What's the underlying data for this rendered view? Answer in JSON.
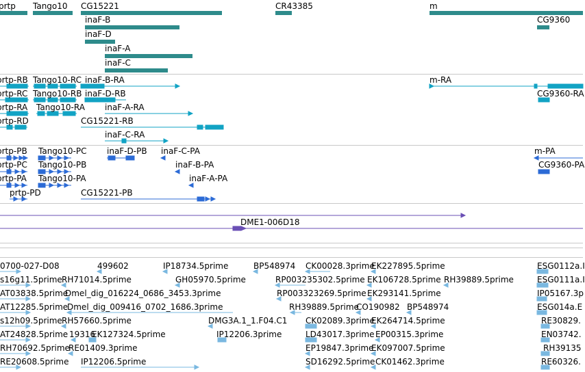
{
  "colors": {
    "gene": "#2e8b8b",
    "transcript": "#12a3c4",
    "protein": "#2c6bd6",
    "clone": "#6a4fb5",
    "est": "#7ab8e0",
    "divider": "#c8c8c8"
  },
  "tracks": {
    "genes": {
      "labels": [
        "prtp",
        "Tango10",
        "CG15221",
        "CR43385",
        "m",
        "inaF-B",
        "CG9360",
        "inaF-D",
        "inaF-A",
        "inaF-C"
      ]
    },
    "transcripts": {
      "labels": [
        "prtp-RB",
        "Tango10-RC",
        "inaF-B-RA",
        "m-RA",
        "prtp-RC",
        "Tango10-RB",
        "inaF-D-RB",
        "CG9360-RA",
        "prtp-RA",
        "Tango10-RA",
        "inaF-A-RA",
        "prtp-RD",
        "CG15221-RB",
        "inaF-C-RA"
      ]
    },
    "proteins": {
      "labels": [
        "prtp-PB",
        "Tango10-PC",
        "inaF-D-PB",
        "inaF-C-PA",
        "m-PA",
        "prtp-PC",
        "Tango10-PB",
        "inaF-B-PA",
        "CG9360-PA",
        "prtp-PA",
        "Tango10-PA",
        "inaF-A-PA",
        "prtp-PD",
        "CG15221-PB"
      ]
    },
    "clones": {
      "labels": [
        "DME1-006D18"
      ]
    },
    "ests": {
      "labels": [
        "0700-027-D08",
        "499602",
        "IP18734.5prime",
        "BP548974",
        "CK00028.3prime",
        "EK227895.5prime",
        "ESG0112a.I",
        "s16g11.5prime",
        "RH71014.5prime",
        "GH05970.5prime",
        "RP003235302.5prime",
        "EK106728.5prime",
        "RH39889.5prime",
        "ESG0111a.I",
        "AT03838.5prime",
        "Dmel_dig_016224_0686_3453.3prime",
        "RP003323269.5prime",
        "EK293141.5prime",
        "IP05167.3p",
        "AT12285.5prime",
        "Dmel_dig_009416_0702_1686.3prime",
        "RH39889.5prime",
        "CO190982",
        "BP548974",
        "ESG014a.E",
        "s12h09.5prime",
        "RH57660.5prime",
        "DMG3A.1_1.F04.C1",
        "CK02089.3prime",
        "EK264714.5prime",
        "RE30829.",
        "AT24828.5prime",
        "19316",
        "EK127324.5prime",
        "IP12206.3prime",
        "LD43017.3prime",
        "EP00315.3prime",
        "EN03742.",
        "RH70692.5prime",
        "RE01409.3prime",
        "EP19847.3prime",
        "EK097007.5prime",
        "RH39135",
        "RE20608.5prime",
        "IP12206.5prime",
        "SD16292.5prime",
        "CK01462.3prime",
        "RE60326."
      ]
    }
  }
}
